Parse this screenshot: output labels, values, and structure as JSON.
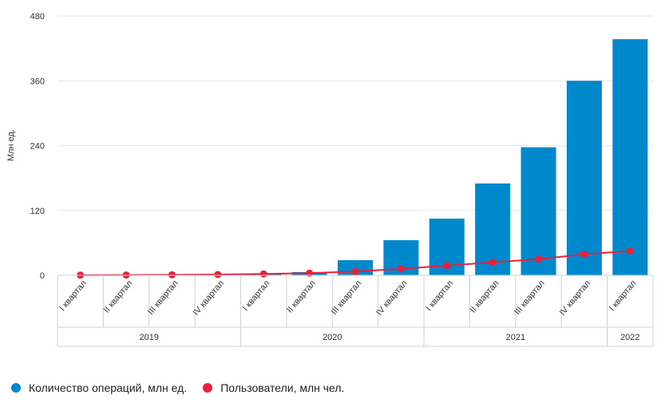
{
  "chart_data": {
    "type": "bar",
    "ylabel": "Млн ед.",
    "ylim": [
      0,
      480
    ],
    "yticks": [
      "0",
      "120",
      "240",
      "360",
      "480"
    ],
    "categories": [
      "I квартал",
      "II квартал",
      "III квартал",
      "IV квартал",
      "I квартал",
      "II квартал",
      "III квартал",
      "IV квартал",
      "I квартал",
      "II квартал",
      "III квартал",
      "IV квартал",
      "I квартал"
    ],
    "years": [
      {
        "label": "2019",
        "count": 4
      },
      {
        "label": "2020",
        "count": 4
      },
      {
        "label": "2021",
        "count": 4
      },
      {
        "label": "2022",
        "count": 1
      }
    ],
    "series": [
      {
        "name": "Количество операций, млн ед.",
        "type": "bar",
        "color": "#0088cc",
        "values": [
          0.5,
          1,
          1.5,
          2,
          3,
          6,
          28,
          65,
          105,
          170,
          237,
          360,
          437
        ]
      },
      {
        "name": "Пользователи, млн чел.",
        "type": "line",
        "color": "#e8203a",
        "values": [
          0.3,
          0.6,
          1,
          1.5,
          2.5,
          4,
          7,
          12,
          18,
          24,
          30,
          39,
          45
        ]
      }
    ],
    "grid": true,
    "legend_position": "bottom-left"
  },
  "legend": {
    "items": [
      {
        "label": "Количество операций, млн ед.",
        "color": "#0088cc"
      },
      {
        "label": "Пользователи, млн чел.",
        "color": "#e8203a"
      }
    ]
  }
}
